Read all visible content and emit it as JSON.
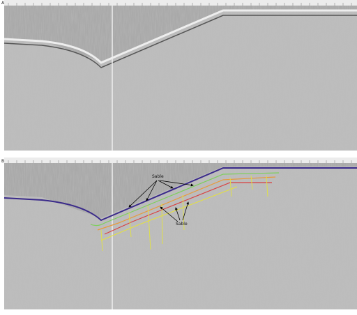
{
  "panels": [
    {
      "label": "A"
    },
    {
      "label": "B"
    }
  ],
  "annotations": [
    {
      "text": "Sable"
    },
    {
      "text": "Sable"
    }
  ]
}
